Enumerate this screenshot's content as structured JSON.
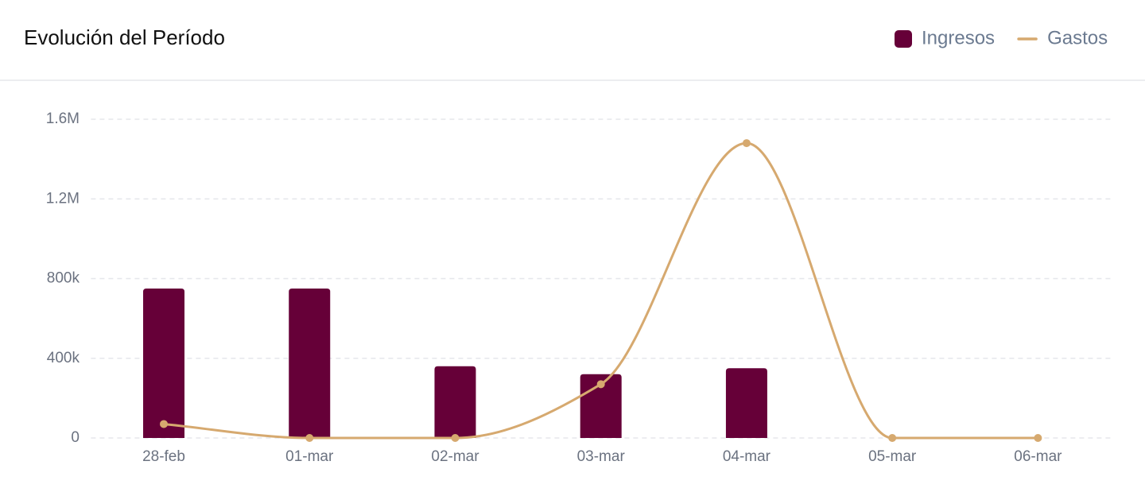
{
  "chart_data": {
    "type": "bar_line",
    "title": "Evolución del Período",
    "categories": [
      "28-feb",
      "01-mar",
      "02-mar",
      "03-mar",
      "04-mar",
      "05-mar",
      "06-mar"
    ],
    "series": [
      {
        "name": "Ingresos",
        "type": "bar",
        "color": "#660038",
        "values": [
          750000,
          750000,
          360000,
          320000,
          350000,
          0,
          0
        ]
      },
      {
        "name": "Gastos",
        "type": "line",
        "color": "#d6a96f",
        "values": [
          70000,
          0,
          0,
          270000,
          1480000,
          0,
          0
        ]
      }
    ],
    "ylim": [
      0,
      1600000
    ],
    "yticks": [
      0,
      {
        "value": 400000,
        "label": "400k"
      },
      {
        "value": 800000,
        "label": "800k"
      },
      {
        "value": 1200000,
        "label": "1.2M"
      },
      {
        "value": 1600000,
        "label": "1.6M"
      }
    ],
    "grid": true,
    "legend": "top-right"
  }
}
